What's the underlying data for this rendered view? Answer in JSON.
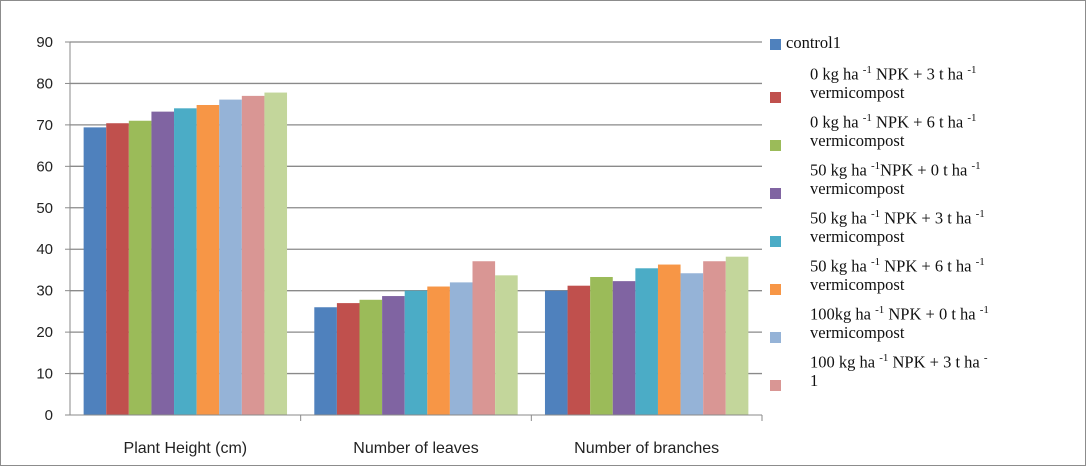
{
  "chart_data": {
    "type": "bar",
    "categories": [
      "Plant Height (cm)",
      "Number of leaves",
      "Number of branches"
    ],
    "ylim": [
      0,
      90
    ],
    "yticks": [
      0,
      10,
      20,
      30,
      40,
      50,
      60,
      70,
      80,
      90
    ],
    "grid": true,
    "legend_position": "right",
    "series": [
      {
        "name": "control1",
        "color": "#4f81bd",
        "values": [
          69.4,
          26.0,
          30.0
        ]
      },
      {
        "name": "0 kg ha -1 NPK + 3 t ha -1 vermicompost",
        "color": "#c0504d",
        "values": [
          70.4,
          27.0,
          31.2
        ]
      },
      {
        "name": "0 kg ha -1 NPK + 6 t ha -1 vermicompost",
        "color": "#9bbb59",
        "values": [
          71.0,
          27.8,
          33.3
        ]
      },
      {
        "name": "50 kg ha -1 NPK + 0 t ha -1 vermicompost",
        "color": "#8064a2",
        "values": [
          73.2,
          28.7,
          32.3
        ]
      },
      {
        "name": "50 kg ha -1 NPK + 3 t ha -1 vermicompost",
        "color": "#4bacc6",
        "values": [
          74.0,
          30.0,
          35.4
        ]
      },
      {
        "name": "50 kg ha -1 NPK + 6 t ha -1 vermicompost",
        "color": "#f79646",
        "values": [
          74.8,
          31.0,
          36.3
        ]
      },
      {
        "name": "100kg ha -1 NPK + 0 t ha -1 vermicompost",
        "color": "#95b3d7",
        "values": [
          76.1,
          32.0,
          34.2
        ]
      },
      {
        "name": "100 kg ha -1 NPK + 3 t ha - 1",
        "color": "#d99694",
        "values": [
          77.0,
          37.1,
          37.1
        ]
      },
      {
        "name": "",
        "color": "#c3d69b",
        "values": [
          77.8,
          33.7,
          38.2
        ]
      }
    ]
  },
  "legend": {
    "items": [
      {
        "swatch_color": "#4f81bd",
        "line1_parts": [
          "control1"
        ],
        "line2": ""
      },
      {
        "swatch_color": "#c0504d",
        "line1_parts": [
          "0 kg ha ",
          "-1",
          " NPK + 3 t ha ",
          "-1"
        ],
        "line2": "vermicompost"
      },
      {
        "swatch_color": "#9bbb59",
        "line1_parts": [
          "0 kg ha ",
          "-1",
          " NPK + 6 t ha ",
          "-1"
        ],
        "line2": "vermicompost"
      },
      {
        "swatch_color": "#8064a2",
        "line1_parts": [
          "50 kg ha ",
          "-1",
          "NPK + 0 t ha ",
          "-1"
        ],
        "line2": "vermicompost"
      },
      {
        "swatch_color": "#4bacc6",
        "line1_parts": [
          "50 kg ha ",
          "-1",
          " NPK + 3 t ha ",
          "-1"
        ],
        "line2": "vermicompost"
      },
      {
        "swatch_color": "#f79646",
        "line1_parts": [
          "50 kg ha ",
          "-1",
          " NPK + 6 t ha ",
          "-1"
        ],
        "line2": "vermicompost"
      },
      {
        "swatch_color": "#95b3d7",
        "line1_parts": [
          "100kg ha ",
          "-1",
          " NPK + 0 t ha ",
          "-1"
        ],
        "line2": "vermicompost"
      },
      {
        "swatch_color": "#d99694",
        "line1_parts": [
          "100 kg ha ",
          "-1",
          " NPK + 3 t ha ",
          "-"
        ],
        "line2": "1"
      }
    ]
  }
}
